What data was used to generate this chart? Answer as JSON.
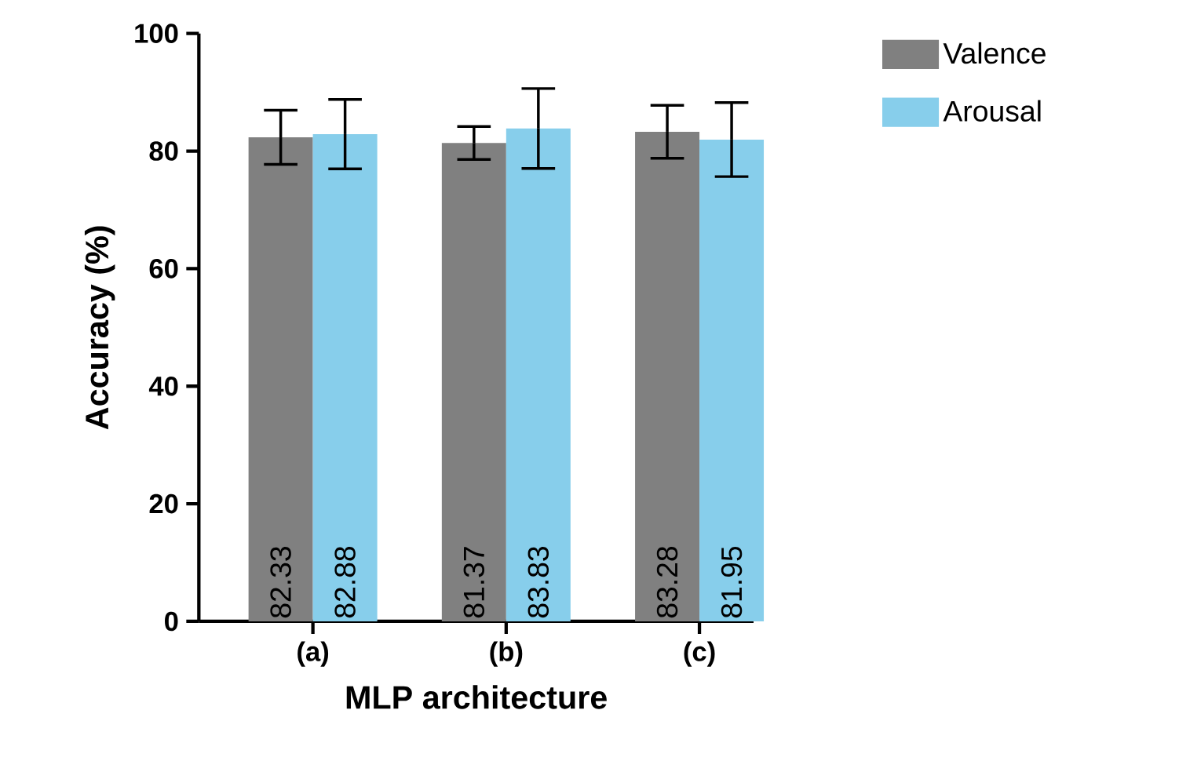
{
  "chart_data": {
    "type": "bar",
    "xlabel": "MLP architecture",
    "ylabel": "Accuracy (%)",
    "categories": [
      "(a)",
      "(b)",
      "(c)"
    ],
    "series": [
      {
        "name": "Valence",
        "color": "#808080",
        "values": [
          82.33,
          81.37,
          83.28
        ],
        "errors": [
          4.6,
          2.8,
          4.5
        ]
      },
      {
        "name": "Arousal",
        "color": "#87ceeb",
        "values": [
          82.88,
          83.83,
          81.95
        ],
        "errors": [
          5.9,
          6.8,
          6.3
        ]
      }
    ],
    "ylim": [
      0,
      100
    ],
    "yticks": [
      0,
      20,
      40,
      60,
      80,
      100
    ],
    "legend": "top right",
    "data_labels": true
  }
}
